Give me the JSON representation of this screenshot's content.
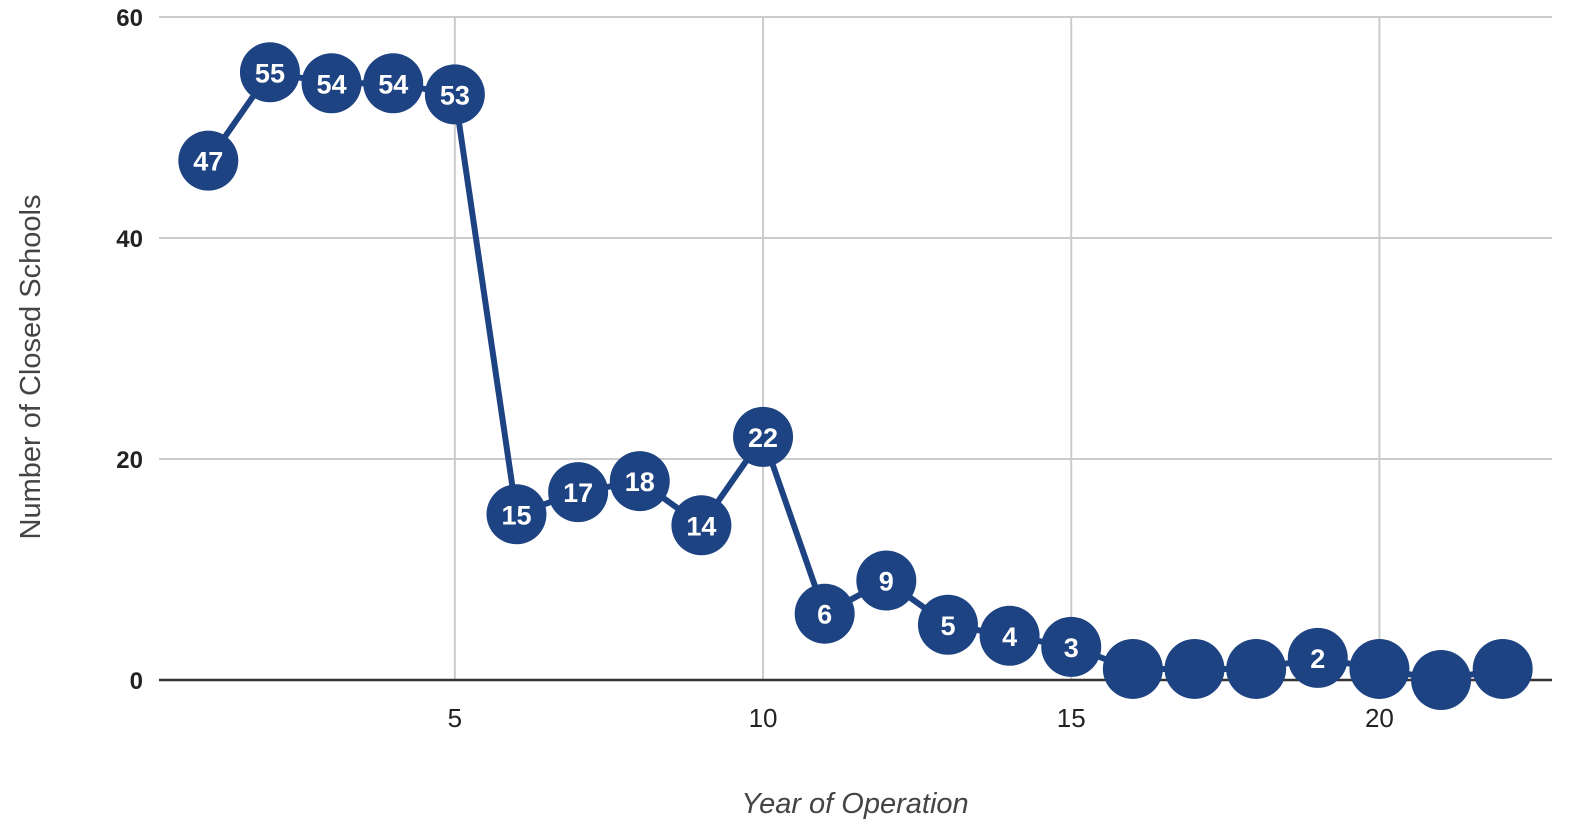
{
  "chart_data": {
    "type": "line",
    "title": "",
    "xlabel": "Year of Operation",
    "ylabel": "Number of Closed Schools",
    "xlim": [
      0.2,
      22.8
    ],
    "ylim": [
      0,
      60
    ],
    "x_ticks": [
      5,
      10,
      15,
      20
    ],
    "y_ticks": [
      0,
      20,
      40,
      60
    ],
    "grid": true,
    "legend": "none",
    "colors": {
      "series": "#1e4383",
      "grid": "#cccccc",
      "axis": "#333333"
    },
    "series": [
      {
        "x": [
          1,
          2,
          3,
          4,
          5,
          6,
          7,
          8,
          9,
          10,
          11,
          12,
          13,
          14,
          15,
          16,
          17,
          18,
          19,
          20,
          21,
          22
        ],
        "values": [
          47,
          55,
          54,
          54,
          53,
          15,
          17,
          18,
          14,
          22,
          6,
          9,
          5,
          4,
          3,
          1,
          1,
          1,
          2,
          1,
          0,
          1
        ],
        "data_labels": [
          "47",
          "55",
          "54",
          "54",
          "53",
          "15",
          "17",
          "18",
          "14",
          "22",
          "6",
          "9",
          "5",
          "4",
          "3",
          "",
          "",
          "",
          "2",
          "",
          "",
          ""
        ]
      }
    ]
  }
}
